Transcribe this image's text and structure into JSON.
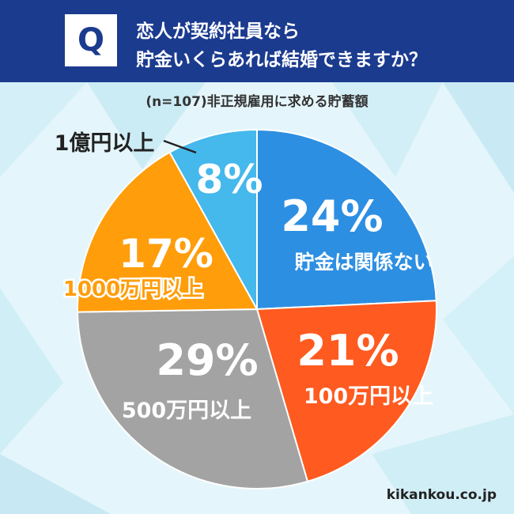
{
  "header": {
    "badge": "Q",
    "question_line1": "恋人が契約社員なら",
    "question_line2": "貯金いくらあれば結婚できますか？"
  },
  "footer": {
    "site": "kikankou.co.jp"
  },
  "chart_data": {
    "type": "pie",
    "title": "(n=107)非正規雇用に求める貯蓄額",
    "start_angle_deg": 0,
    "direction": "clockwise",
    "slices": [
      {
        "label": "貯金は関係ない",
        "value": 24,
        "pct_text": "24%",
        "color": "#2d8fe2",
        "label_color": "#ffffff"
      },
      {
        "label": "100万円以上",
        "value": 21,
        "pct_text": "21%",
        "color": "#ff5a1f",
        "label_color": "#ffffff"
      },
      {
        "label": "500万円以上",
        "value": 29,
        "pct_text": "29%",
        "color": "#a3a3a3",
        "label_color": "#ffffff"
      },
      {
        "label": "1000万円以上",
        "value": 17,
        "pct_text": "17%",
        "color": "#ff9d0a",
        "label_color": "#ff9d0a"
      },
      {
        "label": "1億円以上",
        "value": 8,
        "pct_text": "8%",
        "color": "#45b8ec",
        "label_color": "#222222"
      }
    ]
  }
}
